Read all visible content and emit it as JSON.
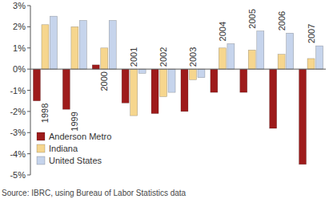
{
  "chart_data": {
    "type": "bar",
    "categories": [
      "1998",
      "1999",
      "2000",
      "2001",
      "2002",
      "2003",
      "2004",
      "2005",
      "2006",
      "2007"
    ],
    "series": [
      {
        "name": "Anderson Metro",
        "color": "#9e1b1b",
        "values": [
          -1.5,
          -1.9,
          0.2,
          -1.6,
          -2.1,
          -2.0,
          -1.1,
          -1.1,
          -2.8,
          -4.5
        ]
      },
      {
        "name": "Indiana",
        "color": "#f6d68e",
        "values": [
          2.1,
          2.0,
          1.0,
          -2.2,
          -1.3,
          -0.5,
          1.0,
          0.9,
          0.7,
          0.5
        ]
      },
      {
        "name": "United States",
        "color": "#c6d4ec",
        "values": [
          2.5,
          2.3,
          2.3,
          -0.2,
          -1.1,
          -0.4,
          1.2,
          1.8,
          1.7,
          1.1
        ]
      }
    ],
    "ylim": [
      -5,
      3
    ],
    "yticks": [
      {
        "value": -5,
        "label": "-5%"
      },
      {
        "value": -4,
        "label": "-4%"
      },
      {
        "value": -3,
        "label": "-3%"
      },
      {
        "value": -2,
        "label": "-2%"
      },
      {
        "value": -1,
        "label": "-1%"
      },
      {
        "value": 0,
        "label": "0%"
      },
      {
        "value": 1,
        "label": "1%"
      },
      {
        "value": 2,
        "label": "2%"
      },
      {
        "value": 3,
        "label": "3%"
      }
    ],
    "grid": false,
    "legend": "lower left",
    "source": "Source: IBRC, using Bureau of Labor Statistics data"
  }
}
